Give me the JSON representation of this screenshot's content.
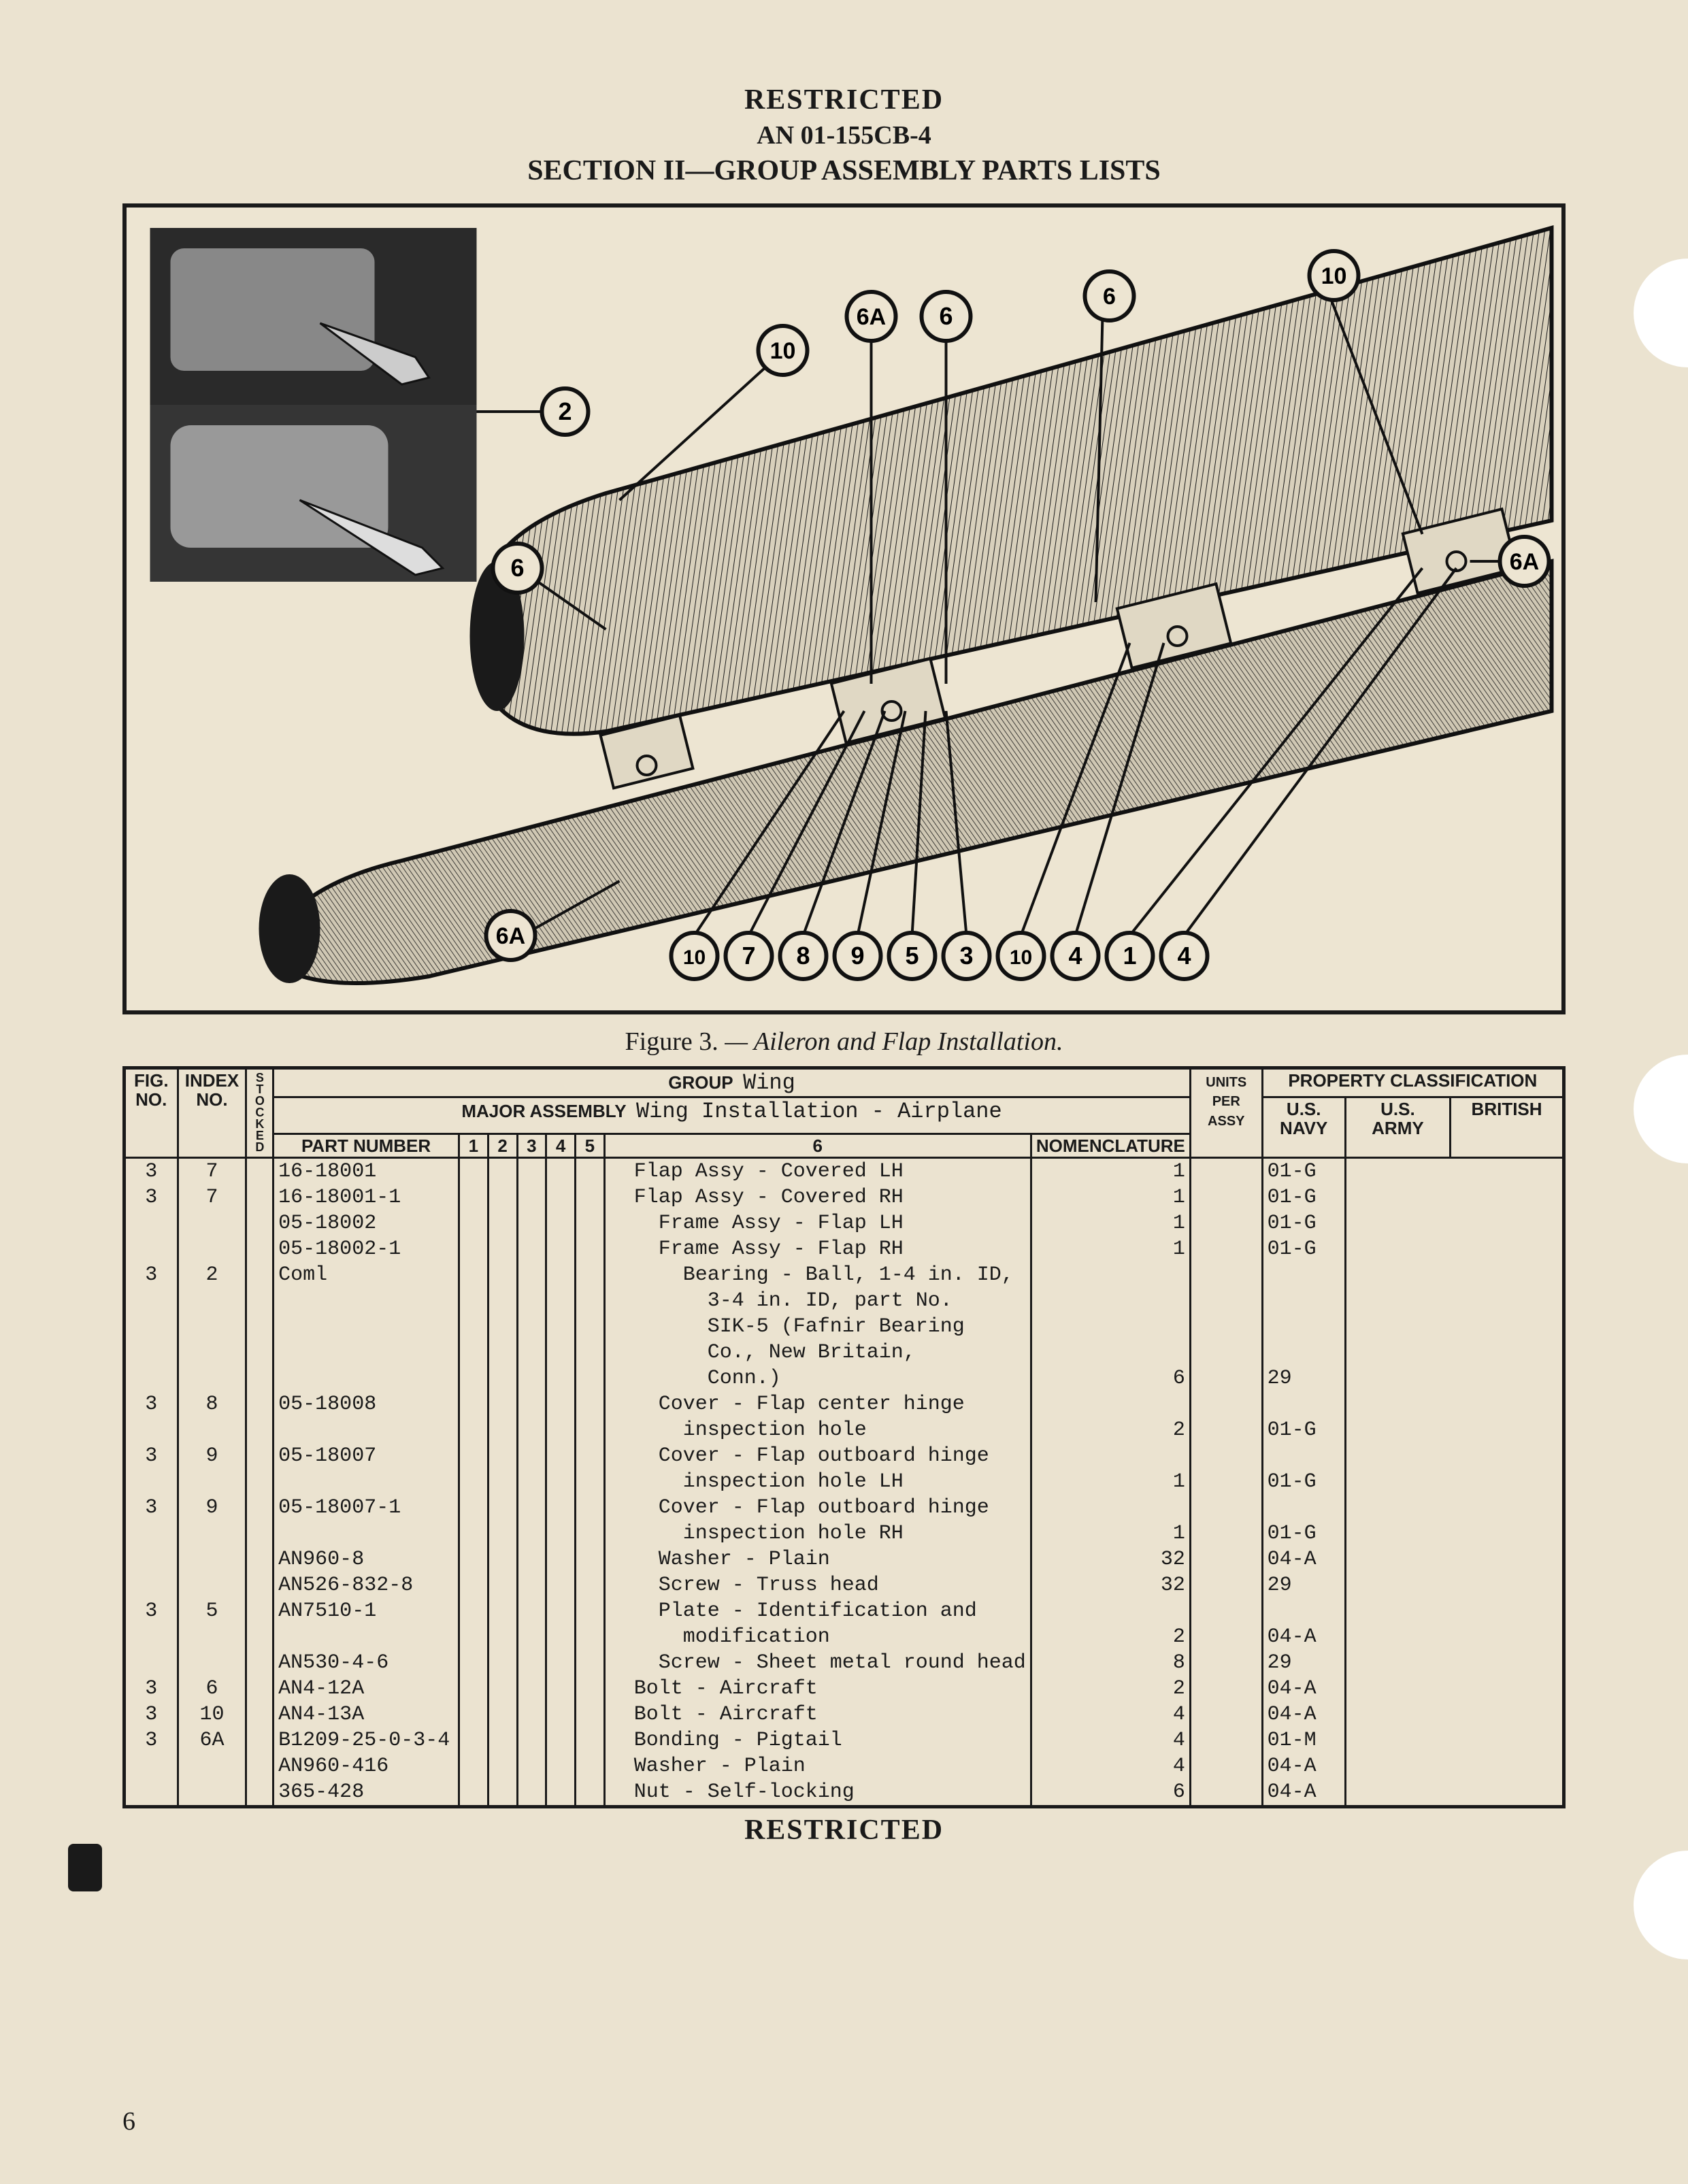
{
  "header": {
    "restricted": "RESTRICTED",
    "doc_number": "AN 01-155CB-4",
    "section": "SECTION II—GROUP ASSEMBLY PARTS LISTS"
  },
  "figure": {
    "number": "Figure 3.",
    "title": "— Aileron and Flap Installation.",
    "callouts_top": [
      "2",
      "10",
      "6A",
      "6",
      "10"
    ],
    "callouts_right": [
      "6A"
    ],
    "callouts_bottom_left": [
      "6",
      "6A"
    ],
    "callouts_bottom_row": [
      "10",
      "7",
      "8",
      "9",
      "5",
      "3",
      "10",
      "4",
      "1",
      "4"
    ]
  },
  "table": {
    "group_label": "GROUP",
    "group_value": "Wing",
    "major_label": "MAJOR ASSEMBLY",
    "major_value": "Wing Installation - Airplane",
    "col_fig": "FIG.\nNO.",
    "col_index": "INDEX\nNO.",
    "col_stocked": "STOCKED",
    "col_part": "PART NUMBER",
    "col_levels": [
      "1",
      "2",
      "3",
      "4",
      "5",
      "6"
    ],
    "col_nom": "NOMENCLATURE",
    "col_units": "UNITS\nPER\nASSY",
    "col_prop": "PROPERTY CLASSIFICATION",
    "col_navy": "U.S.\nNAVY",
    "col_army": "U.S.\nARMY",
    "col_brit": "BRITISH",
    "rows": [
      {
        "fig": "3",
        "idx": "7",
        "part": "16-18001",
        "lvl": 2,
        "nom": "Flap Assy - Covered LH",
        "units": "1",
        "army": "01-G"
      },
      {
        "fig": "3",
        "idx": "7",
        "part": "16-18001-1",
        "lvl": 2,
        "nom": "Flap Assy - Covered RH",
        "units": "1",
        "army": "01-G"
      },
      {
        "fig": "",
        "idx": "",
        "part": "05-18002",
        "lvl": 3,
        "nom": "Frame Assy - Flap LH",
        "units": "1",
        "army": "01-G"
      },
      {
        "fig": "",
        "idx": "",
        "part": "05-18002-1",
        "lvl": 3,
        "nom": "Frame Assy - Flap RH",
        "units": "1",
        "army": "01-G"
      },
      {
        "fig": "3",
        "idx": "2",
        "part": "Coml",
        "lvl": 4,
        "nom": "Bearing - Ball, 1-4 in. ID,",
        "units": "",
        "army": ""
      },
      {
        "fig": "",
        "idx": "",
        "part": "",
        "lvl": 4,
        "nom": "  3-4 in. ID, part No.",
        "units": "",
        "army": ""
      },
      {
        "fig": "",
        "idx": "",
        "part": "",
        "lvl": 4,
        "nom": "  SIK-5 (Fafnir Bearing",
        "units": "",
        "army": ""
      },
      {
        "fig": "",
        "idx": "",
        "part": "",
        "lvl": 4,
        "nom": "  Co., New Britain,",
        "units": "",
        "army": ""
      },
      {
        "fig": "",
        "idx": "",
        "part": "",
        "lvl": 4,
        "nom": "  Conn.)",
        "units": "6",
        "army": "29"
      },
      {
        "fig": "3",
        "idx": "8",
        "part": "05-18008",
        "lvl": 3,
        "nom": "Cover - Flap center hinge",
        "units": "",
        "army": ""
      },
      {
        "fig": "",
        "idx": "",
        "part": "",
        "lvl": 3,
        "nom": "  inspection hole",
        "units": "2",
        "army": "01-G"
      },
      {
        "fig": "3",
        "idx": "9",
        "part": "05-18007",
        "lvl": 3,
        "nom": "Cover - Flap outboard hinge",
        "units": "",
        "army": ""
      },
      {
        "fig": "",
        "idx": "",
        "part": "",
        "lvl": 3,
        "nom": "  inspection hole LH",
        "units": "1",
        "army": "01-G"
      },
      {
        "fig": "3",
        "idx": "9",
        "part": "05-18007-1",
        "lvl": 3,
        "nom": "Cover - Flap outboard hinge",
        "units": "",
        "army": ""
      },
      {
        "fig": "",
        "idx": "",
        "part": "",
        "lvl": 3,
        "nom": "  inspection hole RH",
        "units": "1",
        "army": "01-G"
      },
      {
        "fig": "",
        "idx": "",
        "part": "AN960-8",
        "lvl": 3,
        "nom": "Washer - Plain",
        "units": "32",
        "army": "04-A"
      },
      {
        "fig": "",
        "idx": "",
        "part": "AN526-832-8",
        "lvl": 3,
        "nom": "Screw - Truss head",
        "units": "32",
        "army": "29"
      },
      {
        "fig": "3",
        "idx": "5",
        "part": "AN7510-1",
        "lvl": 3,
        "nom": "Plate - Identification and",
        "units": "",
        "army": ""
      },
      {
        "fig": "",
        "idx": "",
        "part": "",
        "lvl": 3,
        "nom": "  modification",
        "units": "2",
        "army": "04-A"
      },
      {
        "fig": "",
        "idx": "",
        "part": "AN530-4-6",
        "lvl": 3,
        "nom": "Screw - Sheet metal round head",
        "units": "8",
        "army": "29"
      },
      {
        "fig": "3",
        "idx": "6",
        "part": "AN4-12A",
        "lvl": 2,
        "nom": "Bolt - Aircraft",
        "units": "2",
        "army": "04-A"
      },
      {
        "fig": "3",
        "idx": "10",
        "part": "AN4-13A",
        "lvl": 2,
        "nom": "Bolt - Aircraft",
        "units": "4",
        "army": "04-A"
      },
      {
        "fig": "3",
        "idx": "6A",
        "part": "B1209-25-0-3-4",
        "lvl": 2,
        "nom": "Bonding - Pigtail",
        "units": "4",
        "army": "01-M"
      },
      {
        "fig": "",
        "idx": "",
        "part": "AN960-416",
        "lvl": 2,
        "nom": "Washer - Plain",
        "units": "4",
        "army": "04-A"
      },
      {
        "fig": "",
        "idx": "",
        "part": "365-428",
        "lvl": 2,
        "nom": "Nut - Self-locking",
        "units": "6",
        "army": "04-A"
      }
    ]
  },
  "footer": {
    "restricted": "RESTRICTED",
    "page_number": "6"
  },
  "style": {
    "page_bg": "#ebe3d0",
    "ink": "#1a1a1a",
    "border_width": 5,
    "mono_font": "Courier New",
    "header_font": "Times New Roman"
  }
}
